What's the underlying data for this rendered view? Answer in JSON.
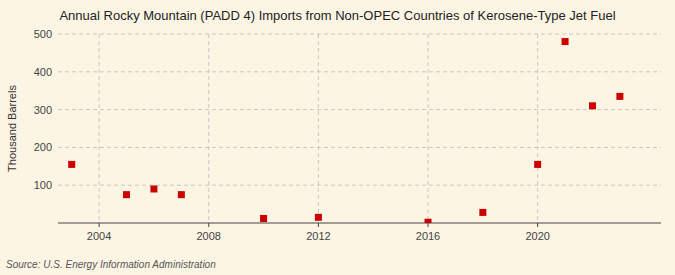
{
  "chart_data": {
    "type": "scatter",
    "title": "Annual Rocky Mountain (PADD 4) Imports from Non-OPEC Countries of Kerosene-Type Jet Fuel",
    "ylabel": "Thousand Barrels",
    "source": "Source: U.S. Energy Information Administration",
    "x": [
      2003,
      2005,
      2006,
      2007,
      2010,
      2012,
      2016,
      2018,
      2020,
      2021,
      2022,
      2023
    ],
    "values": [
      155,
      75,
      90,
      75,
      12,
      15,
      2,
      28,
      155,
      480,
      310,
      335
    ],
    "color": "#cc0000",
    "marker": "square",
    "xlim": [
      2002.5,
      2024.5
    ],
    "ylim": [
      0,
      500
    ],
    "xticks": [
      2004,
      2008,
      2012,
      2016,
      2020
    ],
    "yticks": [
      100,
      200,
      300,
      400,
      500
    ],
    "grid": true
  }
}
